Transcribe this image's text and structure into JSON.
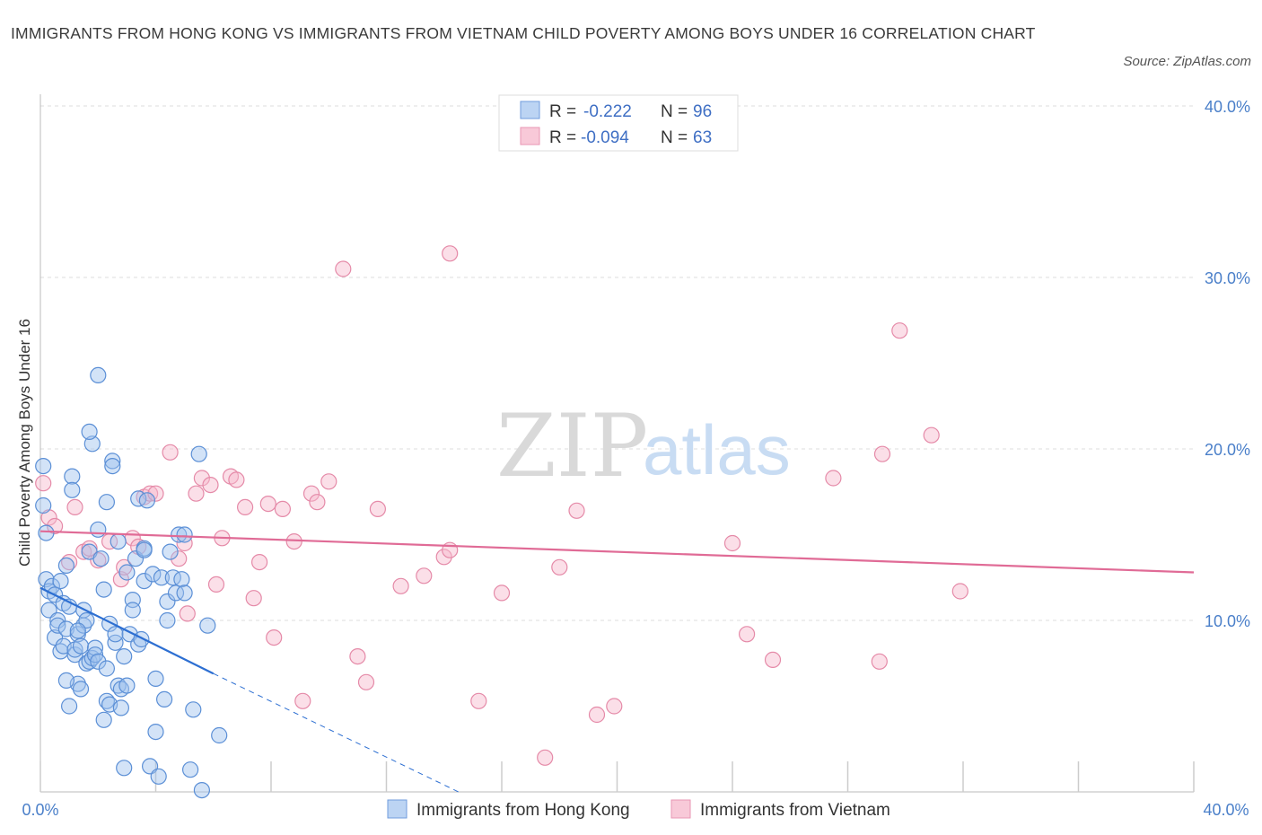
{
  "header": {
    "title": "IMMIGRANTS FROM HONG KONG VS IMMIGRANTS FROM VIETNAM CHILD POVERTY AMONG BOYS UNDER 16 CORRELATION CHART",
    "source": "Source: ZipAtlas.com"
  },
  "watermark": {
    "zip": "ZIP",
    "atlas": "atlas"
  },
  "legend_box": {
    "rows": [
      {
        "r_label": "R =",
        "r_value": "-0.222",
        "n_label": "N =",
        "n_value": "96"
      },
      {
        "r_label": "R =",
        "r_value": "-0.094",
        "n_label": "N =",
        "n_value": "63"
      }
    ]
  },
  "colors": {
    "blue_fill": "#9ec2ee",
    "blue_stroke": "#5b8fd6",
    "blue_line": "#2d6fd2",
    "pink_fill": "#f6b9cc",
    "pink_stroke": "#e58aa8",
    "pink_line": "#e06b96",
    "grid": "#dddddd",
    "axis_label": "#4a7fc9"
  },
  "chart_data": {
    "type": "scatter",
    "title": "IMMIGRANTS FROM HONG KONG VS IMMIGRANTS FROM VIETNAM CHILD POVERTY AMONG BOYS UNDER 16 CORRELATION CHART",
    "xlabel": "",
    "ylabel": "Child Poverty Among Boys Under 16",
    "xlim": [
      0,
      40
    ],
    "ylim": [
      0,
      40
    ],
    "x_tick_labels": [
      "0.0%",
      "40.0%"
    ],
    "y_ticks": [
      10,
      20,
      30,
      40
    ],
    "y_tick_labels": [
      "10.0%",
      "20.0%",
      "30.0%",
      "40.0%"
    ],
    "grid": true,
    "legend_position": "bottom",
    "series": [
      {
        "name": "Immigrants from Hong Kong",
        "R": -0.222,
        "N": 96,
        "trend": {
          "solid": [
            [
              0.0,
              11.9
            ],
            [
              6.0,
              6.9
            ]
          ],
          "dashed": [
            [
              6.0,
              6.9
            ],
            [
              14.5,
              0.0
            ]
          ]
        },
        "points": [
          [
            0.1,
            19.0
          ],
          [
            0.1,
            16.7
          ],
          [
            0.2,
            15.1
          ],
          [
            0.2,
            12.4
          ],
          [
            0.3,
            11.7
          ],
          [
            0.3,
            10.6
          ],
          [
            0.4,
            12.0
          ],
          [
            0.5,
            9.0
          ],
          [
            0.5,
            11.5
          ],
          [
            0.6,
            10.0
          ],
          [
            0.6,
            9.7
          ],
          [
            0.7,
            12.3
          ],
          [
            0.7,
            8.2
          ],
          [
            0.8,
            8.5
          ],
          [
            0.8,
            11.0
          ],
          [
            0.9,
            13.2
          ],
          [
            0.9,
            9.5
          ],
          [
            1.0,
            10.8
          ],
          [
            1.0,
            5.0
          ],
          [
            1.1,
            18.4
          ],
          [
            1.1,
            17.6
          ],
          [
            1.2,
            8.0
          ],
          [
            1.2,
            8.3
          ],
          [
            1.3,
            9.2
          ],
          [
            1.3,
            6.3
          ],
          [
            1.4,
            8.5
          ],
          [
            1.4,
            6.0
          ],
          [
            1.5,
            10.6
          ],
          [
            1.5,
            9.7
          ],
          [
            1.6,
            10.0
          ],
          [
            1.6,
            7.5
          ],
          [
            1.7,
            7.6
          ],
          [
            1.7,
            14.0
          ],
          [
            1.8,
            20.3
          ],
          [
            1.8,
            7.8
          ],
          [
            1.9,
            8.4
          ],
          [
            1.9,
            8.0
          ],
          [
            2.0,
            7.6
          ],
          [
            2.0,
            15.3
          ],
          [
            2.1,
            13.6
          ],
          [
            2.2,
            4.2
          ],
          [
            2.2,
            11.8
          ],
          [
            2.3,
            7.2
          ],
          [
            2.3,
            5.3
          ],
          [
            2.4,
            9.8
          ],
          [
            2.4,
            5.1
          ],
          [
            2.5,
            19.3
          ],
          [
            2.5,
            19.0
          ],
          [
            2.6,
            8.7
          ],
          [
            2.6,
            9.2
          ],
          [
            2.7,
            6.2
          ],
          [
            2.7,
            14.6
          ],
          [
            2.8,
            4.9
          ],
          [
            2.8,
            6.0
          ],
          [
            2.9,
            1.4
          ],
          [
            3.0,
            12.8
          ],
          [
            3.0,
            6.2
          ],
          [
            3.1,
            9.2
          ],
          [
            3.2,
            11.2
          ],
          [
            3.2,
            10.6
          ],
          [
            3.3,
            13.6
          ],
          [
            3.4,
            8.6
          ],
          [
            3.4,
            17.1
          ],
          [
            3.5,
            8.9
          ],
          [
            3.6,
            12.3
          ],
          [
            3.6,
            14.2
          ],
          [
            3.7,
            17.0
          ],
          [
            3.8,
            1.5
          ],
          [
            3.9,
            12.7
          ],
          [
            4.0,
            6.6
          ],
          [
            4.0,
            3.5
          ],
          [
            4.1,
            0.9
          ],
          [
            4.2,
            12.5
          ],
          [
            4.3,
            5.4
          ],
          [
            4.4,
            11.1
          ],
          [
            4.4,
            10.0
          ],
          [
            4.5,
            14.0
          ],
          [
            4.6,
            12.5
          ],
          [
            4.7,
            11.6
          ],
          [
            4.8,
            15.0
          ],
          [
            4.9,
            12.4
          ],
          [
            5.0,
            11.6
          ],
          [
            5.2,
            1.3
          ],
          [
            5.3,
            4.8
          ],
          [
            5.5,
            19.7
          ],
          [
            5.6,
            0.1
          ],
          [
            5.8,
            9.7
          ],
          [
            6.2,
            3.3
          ],
          [
            1.7,
            21.0
          ],
          [
            2.0,
            24.3
          ],
          [
            0.9,
            6.5
          ],
          [
            1.3,
            9.4
          ],
          [
            2.9,
            7.9
          ],
          [
            3.6,
            14.1
          ],
          [
            2.3,
            16.9
          ],
          [
            5.0,
            15.0
          ]
        ]
      },
      {
        "name": "Immigrants from Vietnam",
        "R": -0.094,
        "N": 63,
        "trend": {
          "solid": [
            [
              0.0,
              15.2
            ],
            [
              40.0,
              12.8
            ]
          ]
        },
        "points": [
          [
            0.1,
            18.0
          ],
          [
            0.3,
            16.0
          ],
          [
            0.5,
            15.5
          ],
          [
            1.0,
            13.4
          ],
          [
            1.2,
            16.6
          ],
          [
            1.5,
            14.0
          ],
          [
            2.0,
            13.5
          ],
          [
            2.4,
            14.6
          ],
          [
            2.8,
            12.4
          ],
          [
            2.9,
            13.1
          ],
          [
            3.2,
            14.8
          ],
          [
            3.4,
            14.3
          ],
          [
            3.6,
            17.2
          ],
          [
            3.8,
            17.4
          ],
          [
            4.0,
            17.4
          ],
          [
            4.5,
            19.8
          ],
          [
            4.8,
            13.6
          ],
          [
            5.0,
            14.5
          ],
          [
            5.1,
            10.4
          ],
          [
            5.4,
            17.4
          ],
          [
            5.6,
            18.3
          ],
          [
            5.9,
            17.9
          ],
          [
            6.1,
            12.1
          ],
          [
            6.3,
            14.8
          ],
          [
            6.6,
            18.4
          ],
          [
            6.8,
            18.2
          ],
          [
            7.1,
            16.6
          ],
          [
            7.4,
            11.3
          ],
          [
            7.6,
            13.4
          ],
          [
            7.9,
            16.8
          ],
          [
            8.1,
            9.0
          ],
          [
            8.4,
            16.5
          ],
          [
            8.8,
            14.6
          ],
          [
            9.1,
            5.3
          ],
          [
            9.4,
            17.4
          ],
          [
            9.6,
            16.9
          ],
          [
            10.0,
            18.1
          ],
          [
            10.5,
            30.5
          ],
          [
            11.0,
            7.9
          ],
          [
            11.3,
            6.4
          ],
          [
            11.7,
            16.5
          ],
          [
            12.5,
            12.0
          ],
          [
            13.3,
            12.6
          ],
          [
            14.0,
            13.7
          ],
          [
            14.2,
            14.1
          ],
          [
            14.2,
            31.4
          ],
          [
            15.2,
            5.3
          ],
          [
            16.0,
            11.6
          ],
          [
            17.5,
            2.0
          ],
          [
            18.0,
            13.1
          ],
          [
            18.6,
            16.4
          ],
          [
            19.3,
            4.5
          ],
          [
            19.9,
            5.0
          ],
          [
            24.0,
            14.5
          ],
          [
            24.5,
            9.2
          ],
          [
            25.4,
            7.7
          ],
          [
            27.5,
            18.3
          ],
          [
            29.2,
            19.7
          ],
          [
            29.1,
            7.6
          ],
          [
            29.8,
            26.9
          ],
          [
            30.9,
            20.8
          ],
          [
            31.9,
            11.7
          ],
          [
            1.7,
            14.2
          ]
        ]
      }
    ]
  }
}
